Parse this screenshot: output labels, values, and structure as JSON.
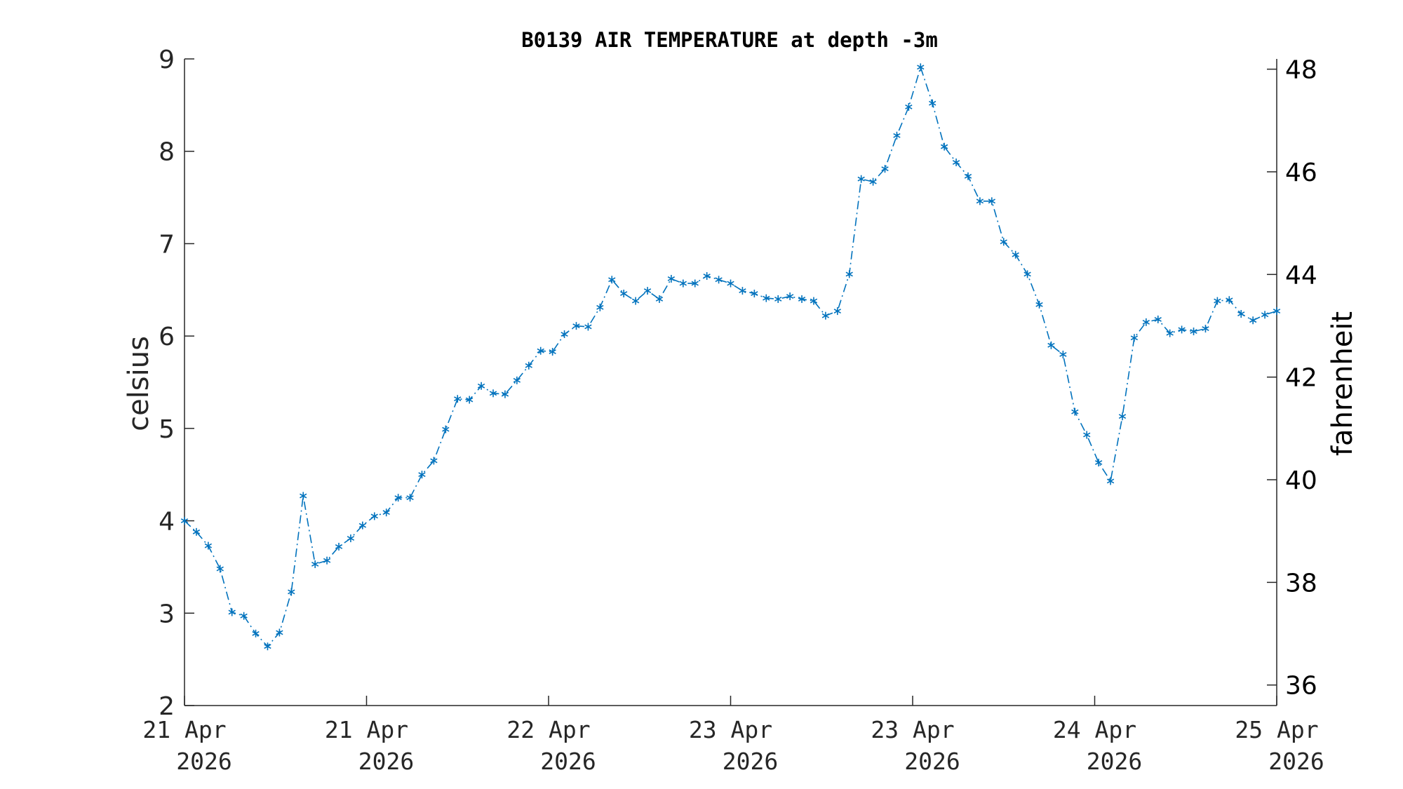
{
  "chart_data": {
    "type": "line",
    "title": "B0139 AIR TEMPERATURE at depth -3m",
    "ylabel": "celsius",
    "ylabel_right": "fahrenheit",
    "xlabel": "",
    "ylim": [
      2,
      9
    ],
    "ylim_right": [
      35.6,
      48.2
    ],
    "yticks": [
      "2",
      "3",
      "4",
      "5",
      "6",
      "7",
      "8",
      "9"
    ],
    "yticks_right": [
      "36",
      "38",
      "40",
      "42",
      "44",
      "46",
      "48"
    ],
    "xticks": [
      {
        "line1": "21 Apr",
        "line2": "2026"
      },
      {
        "line1": "21 Apr",
        "line2": "2026"
      },
      {
        "line1": "22 Apr",
        "line2": "2026"
      },
      {
        "line1": "23 Apr",
        "line2": "2026"
      },
      {
        "line1": "23 Apr",
        "line2": "2026"
      },
      {
        "line1": "24 Apr",
        "line2": "2026"
      },
      {
        "line1": "25 Apr",
        "line2": "2026"
      }
    ],
    "grid": false,
    "series": [
      {
        "color": "#0072BD",
        "marker": "asterisk",
        "line_style": "dash-dot",
        "values": [
          4.0,
          3.88,
          3.73,
          3.48,
          3.01,
          2.97,
          2.78,
          2.64,
          2.79,
          3.23,
          4.27,
          3.53,
          3.57,
          3.72,
          3.81,
          3.95,
          4.05,
          4.09,
          4.25,
          4.25,
          4.5,
          4.65,
          4.99,
          5.32,
          5.31,
          5.46,
          5.38,
          5.37,
          5.52,
          5.68,
          5.84,
          5.83,
          6.02,
          6.11,
          6.1,
          6.31,
          6.61,
          6.46,
          6.38,
          6.49,
          6.4,
          6.62,
          6.57,
          6.57,
          6.65,
          6.61,
          6.57,
          6.49,
          6.46,
          6.41,
          6.4,
          6.43,
          6.4,
          6.38,
          6.22,
          6.27,
          6.67,
          7.7,
          7.67,
          7.81,
          8.17,
          8.48,
          8.91,
          8.52,
          8.05,
          7.88,
          7.73,
          7.46,
          7.46,
          7.02,
          6.88,
          6.67,
          6.34,
          5.9,
          5.8,
          5.18,
          4.93,
          4.63,
          4.43,
          5.13,
          5.98,
          6.15,
          6.18,
          6.03,
          6.07,
          6.05,
          6.08,
          6.38,
          6.39,
          6.24,
          6.17,
          6.23,
          6.27
        ]
      }
    ]
  }
}
